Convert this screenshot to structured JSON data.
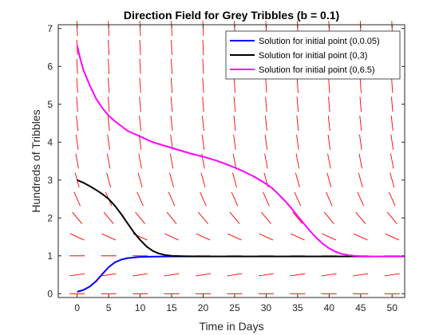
{
  "chart_data": {
    "type": "line",
    "title": "Direction Field for Grey Tribbles (b = 0.1)",
    "xlabel": "Time in Days",
    "ylabel": "Hundreds of Tribbles",
    "xlim": [
      -3,
      52
    ],
    "ylim": [
      -0.1,
      7.1
    ],
    "xticks": [
      "0",
      "5",
      "10",
      "15",
      "20",
      "25",
      "30",
      "35",
      "40",
      "45",
      "50"
    ],
    "yticks": [
      "0",
      "1",
      "2",
      "3",
      "4",
      "5",
      "6",
      "7"
    ],
    "grid": false,
    "legend_position": "top-right",
    "direction_field": {
      "color": "#ff0000",
      "t_values": [
        0,
        5,
        10,
        15,
        20,
        25,
        30,
        35,
        40,
        45,
        50
      ],
      "p_values": [
        0,
        0.5,
        1,
        1.5,
        2,
        2.5,
        3,
        3.5,
        4,
        4.5,
        5,
        5.5,
        6,
        6.5,
        7
      ]
    },
    "series": [
      {
        "name": "Solution for initial point (0,0.05)",
        "color": "#0000ff",
        "x": [
          0,
          1,
          2,
          3,
          4,
          5,
          6,
          7,
          8,
          10,
          12,
          15,
          20,
          30,
          40,
          52
        ],
        "y": [
          0.05,
          0.1,
          0.19,
          0.33,
          0.52,
          0.7,
          0.83,
          0.9,
          0.94,
          0.97,
          0.98,
          0.985,
          0.985,
          0.985,
          0.985,
          0.985
        ]
      },
      {
        "name": "Solution for initial point (0,3)",
        "color": "#000000",
        "x": [
          0,
          1,
          2,
          3,
          4,
          5,
          6,
          7,
          8,
          9,
          10,
          11,
          12,
          13,
          14,
          15,
          17,
          20,
          25,
          30,
          35,
          40,
          45,
          52
        ],
        "y": [
          3.0,
          2.93,
          2.84,
          2.74,
          2.63,
          2.5,
          2.32,
          2.1,
          1.86,
          1.62,
          1.42,
          1.25,
          1.13,
          1.06,
          1.02,
          1.0,
          0.99,
          0.985,
          0.985,
          0.985,
          0.985,
          0.985,
          0.985,
          0.985
        ]
      },
      {
        "name": "Solution for initial point (0,6.5)",
        "color": "#ff00ff",
        "x": [
          0,
          0.5,
          1,
          2,
          3,
          4,
          5,
          6,
          8,
          10,
          12,
          14,
          16,
          18,
          20,
          22,
          24,
          26,
          28,
          30,
          31,
          32,
          33,
          34,
          35,
          36,
          37,
          38,
          39,
          40,
          41,
          42,
          43,
          44,
          45,
          47,
          50,
          52
        ],
        "y": [
          6.55,
          6.2,
          5.9,
          5.5,
          5.15,
          4.9,
          4.7,
          4.55,
          4.3,
          4.15,
          4.0,
          3.9,
          3.8,
          3.7,
          3.62,
          3.52,
          3.4,
          3.26,
          3.1,
          2.9,
          2.78,
          2.62,
          2.45,
          2.26,
          2.05,
          1.85,
          1.65,
          1.47,
          1.32,
          1.2,
          1.11,
          1.05,
          1.02,
          1.0,
          0.99,
          0.985,
          0.985,
          0.985
        ]
      }
    ]
  }
}
